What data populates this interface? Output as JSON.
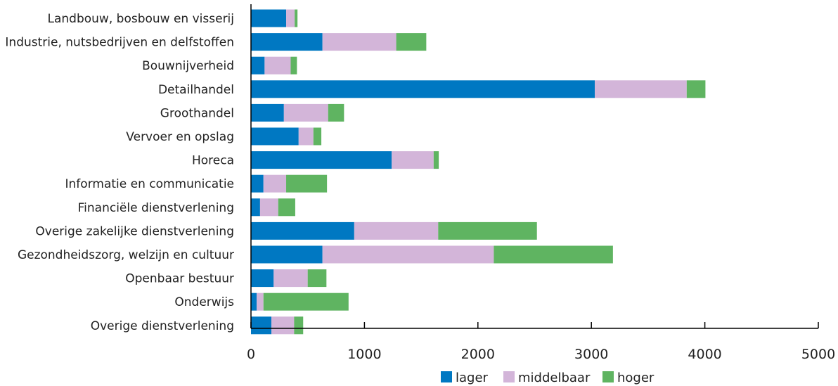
{
  "colors": {
    "lager": "#0078c2",
    "middelbaar": "#d3b5d9",
    "hoger": "#5fb461",
    "axis": "#000000"
  },
  "chart_data": {
    "type": "bar",
    "orientation": "horizontal",
    "stacked": true,
    "categories": [
      "Landbouw, bosbouw en visserij",
      "Industrie, nutsbedrijven en delfstoffen",
      "Bouwnijverheid",
      "Detailhandel",
      "Groothandel",
      "Vervoer en opslag",
      "Horeca",
      "Informatie en communicatie",
      "Financiële dienstverlening",
      "Overige zakelijke dienstverlening",
      "Gezondheidszorg, welzijn en cultuur",
      "Openbaar bestuur",
      "Onderwijs",
      "Overige dienstverlening"
    ],
    "series": [
      {
        "name": "lager",
        "values": [
          310,
          630,
          120,
          3030,
          290,
          420,
          1240,
          110,
          80,
          910,
          630,
          200,
          50,
          180
        ]
      },
      {
        "name": "middelbaar",
        "values": [
          75,
          650,
          230,
          810,
          390,
          130,
          370,
          200,
          160,
          740,
          1510,
          300,
          60,
          200
        ]
      },
      {
        "name": "hoger",
        "values": [
          25,
          265,
          55,
          165,
          140,
          70,
          45,
          360,
          150,
          870,
          1050,
          165,
          750,
          80
        ]
      }
    ],
    "xlim": [
      0,
      5000
    ],
    "xticks": [
      "0",
      "1000",
      "2000",
      "3000",
      "4000",
      "5000"
    ],
    "grid": false,
    "legend": "bottom"
  }
}
